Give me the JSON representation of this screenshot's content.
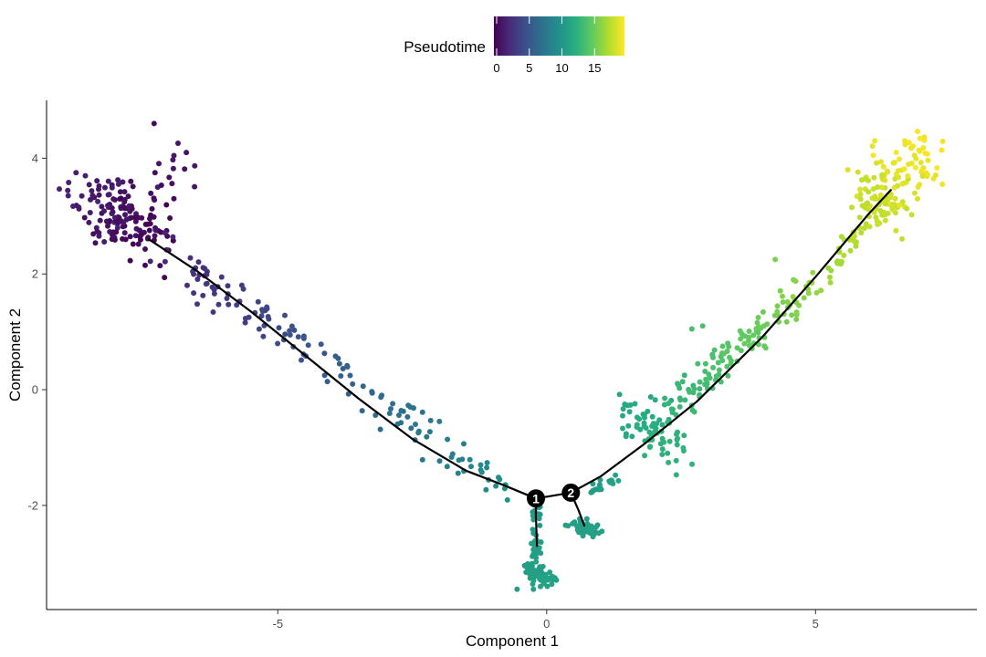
{
  "chart_data": {
    "type": "scatter",
    "title": "",
    "xlabel": "Component 1",
    "ylabel": "Component 2",
    "xlim": [
      -9.3,
      8.0
    ],
    "ylim": [
      -3.8,
      5.0
    ],
    "x_ticks": [
      {
        "value": -5,
        "label": "-5"
      },
      {
        "value": 0,
        "label": "0"
      },
      {
        "value": 5,
        "label": "5"
      }
    ],
    "y_ticks": [
      {
        "value": -2,
        "label": "-2"
      },
      {
        "value": 0,
        "label": "0"
      },
      {
        "value": 2,
        "label": "2"
      },
      {
        "value": 4,
        "label": "4"
      }
    ],
    "grid": false,
    "legend": {
      "title": "Pseudotime",
      "placement": "top",
      "range": [
        0,
        20
      ],
      "ticks": [
        {
          "value": 0,
          "label": "0"
        },
        {
          "value": 5,
          "label": "5"
        },
        {
          "value": 10,
          "label": "10"
        },
        {
          "value": 15,
          "label": "15"
        }
      ],
      "colors": [
        "#440154",
        "#472D7B",
        "#3B528B",
        "#2C728E",
        "#21918C",
        "#28AE80",
        "#5EC962",
        "#ADDC30",
        "#FDE725"
      ]
    },
    "trajectory": {
      "color": "#000000",
      "main_path": [
        [
          -7.4,
          2.6
        ],
        [
          -6.5,
          2.05
        ],
        [
          -5.5,
          1.35
        ],
        [
          -4.5,
          0.6
        ],
        [
          -3.5,
          -0.15
        ],
        [
          -2.5,
          -0.85
        ],
        [
          -1.5,
          -1.4
        ],
        [
          -0.8,
          -1.65
        ],
        [
          -0.2,
          -1.88
        ],
        [
          0.45,
          -1.78
        ],
        [
          1.0,
          -1.5
        ],
        [
          1.8,
          -0.95
        ],
        [
          2.8,
          -0.2
        ],
        [
          4.0,
          0.9
        ],
        [
          5.0,
          1.95
        ],
        [
          6.0,
          3.05
        ],
        [
          6.4,
          3.45
        ]
      ],
      "branches": [
        [
          [
            -0.2,
            -1.88
          ],
          [
            -0.2,
            -2.2
          ],
          [
            -0.18,
            -2.7
          ]
        ],
        [
          [
            0.45,
            -1.78
          ],
          [
            0.6,
            -2.1
          ],
          [
            0.7,
            -2.35
          ]
        ]
      ],
      "branch_points": [
        {
          "label": "1",
          "x": -0.2,
          "y": -1.88
        },
        {
          "label": "2",
          "x": 0.45,
          "y": -1.78
        }
      ]
    },
    "clusters": [
      {
        "x": [
          -7.4,
          -8.6
        ],
        "y": [
          2.65,
          3.35
        ],
        "spread": [
          0.35,
          0.3
        ],
        "n": 150,
        "pseudotime": [
          0.0,
          2.0
        ]
      },
      {
        "x": [
          -7.2,
          -6.6
        ],
        "y": [
          3.5,
          4.05
        ],
        "spread": [
          0.25,
          0.25
        ],
        "n": 14,
        "pseudotime": [
          0.5,
          1.5
        ]
      },
      {
        "x": [
          -7.1,
          -0.6
        ],
        "y": [
          2.4,
          -1.8
        ],
        "spread": [
          0.15,
          0.18
        ],
        "n": 140,
        "pseudotime": [
          2.0,
          10.0
        ]
      },
      {
        "x": [
          -0.2,
          -0.2
        ],
        "y": [
          -2.0,
          -3.2
        ],
        "spread": [
          0.06,
          0.06
        ],
        "n": 40,
        "pseudotime": [
          10.5,
          11.5
        ]
      },
      {
        "x": [
          -0.3,
          0.0
        ],
        "y": [
          -3.05,
          -3.35
        ],
        "spread": [
          0.1,
          0.06
        ],
        "n": 70,
        "pseudotime": [
          11.0,
          11.5
        ]
      },
      {
        "x": [
          0.6,
          0.9
        ],
        "y": [
          -2.3,
          -2.5
        ],
        "spread": [
          0.1,
          0.06
        ],
        "n": 60,
        "pseudotime": [
          11.0,
          11.5
        ]
      },
      {
        "x": [
          0.8,
          1.3
        ],
        "y": [
          -1.75,
          -1.5
        ],
        "spread": [
          0.06,
          0.04
        ],
        "n": 20,
        "pseudotime": [
          11.0,
          11.5
        ]
      },
      {
        "x": [
          1.7,
          2.3
        ],
        "y": [
          -0.4,
          -1.0
        ],
        "spread": [
          0.2,
          0.22
        ],
        "n": 70,
        "pseudotime": [
          12.0,
          13.0
        ]
      },
      {
        "x": [
          2.3,
          5.2
        ],
        "y": [
          -0.4,
          2.1
        ],
        "spread": [
          0.12,
          0.15
        ],
        "n": 130,
        "pseudotime": [
          13.0,
          17.0
        ]
      },
      {
        "x": [
          5.2,
          6.4
        ],
        "y": [
          2.1,
          3.2
        ],
        "spread": [
          0.1,
          0.12
        ],
        "n": 40,
        "pseudotime": [
          17.0,
          18.5
        ]
      },
      {
        "x": [
          6.0,
          7.0
        ],
        "y": [
          3.1,
          4.1
        ],
        "spread": [
          0.3,
          0.25
        ],
        "n": 130,
        "pseudotime": [
          18.0,
          20.0
        ]
      }
    ],
    "outliers": [
      {
        "x": -7.3,
        "y": 4.6,
        "pseudotime": 0.5
      },
      {
        "x": -6.7,
        "y": 4.1,
        "pseudotime": 1.0
      },
      {
        "x": -0.55,
        "y": -3.45,
        "pseudotime": 11.0
      },
      {
        "x": 5.6,
        "y": 3.8,
        "pseudotime": 19.0
      },
      {
        "x": 6.1,
        "y": 4.3,
        "pseudotime": 19.5
      },
      {
        "x": 4.25,
        "y": 2.25,
        "pseudotime": 16.0
      },
      {
        "x": 2.7,
        "y": 1.05,
        "pseudotime": 14.0
      },
      {
        "x": 2.9,
        "y": 1.1,
        "pseudotime": 14.0
      },
      {
        "x": -5.2,
        "y": 1.4,
        "pseudotime": 4.0
      }
    ]
  }
}
